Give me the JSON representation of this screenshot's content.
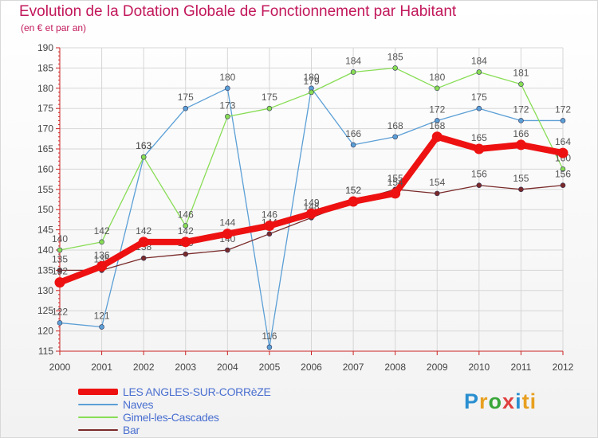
{
  "header": {
    "title": "Evolution de la Dotation Globale de Fonctionnement par Habitant",
    "subtitle": "(en € et par an)"
  },
  "logo": {
    "letters": [
      "P",
      "r",
      "o",
      "x",
      "i",
      "ti"
    ]
  },
  "chart_data": {
    "type": "line",
    "title": "Evolution de la Dotation Globale de Fonctionnement par Habitant",
    "subtitle": "(en € et par an)",
    "xlabel": "",
    "ylabel": "",
    "x": [
      "2000",
      "2001",
      "2002",
      "2003",
      "2004",
      "2005",
      "2006",
      "2007",
      "2008",
      "2009",
      "2010",
      "2011",
      "2012"
    ],
    "ylim": [
      115,
      190
    ],
    "yticks": [
      115,
      120,
      125,
      130,
      135,
      140,
      145,
      150,
      155,
      160,
      165,
      170,
      175,
      180,
      185,
      190
    ],
    "grid": true,
    "legend_position": "bottom-left",
    "series": [
      {
        "name": "LES ANGLES-SUR-CORRèZE",
        "color": "#ee1111",
        "values": [
          132,
          136,
          142,
          142,
          144,
          146,
          149,
          152,
          154,
          168,
          165,
          166,
          164
        ]
      },
      {
        "name": "Naves",
        "color": "#5b9fd6",
        "values": [
          122,
          121,
          163,
          175,
          180,
          116,
          180,
          166,
          168,
          172,
          175,
          172,
          172
        ]
      },
      {
        "name": "Gimel-les-Cascades",
        "color": "#88dd55",
        "values": [
          140,
          142,
          163,
          146,
          173,
          175,
          179,
          184,
          185,
          180,
          184,
          181,
          160
        ]
      },
      {
        "name": "Bar",
        "color": "#7a2a2a",
        "values": [
          135,
          135,
          138,
          139,
          140,
          144,
          148,
          152,
          155,
          154,
          156,
          155,
          156
        ]
      }
    ]
  }
}
